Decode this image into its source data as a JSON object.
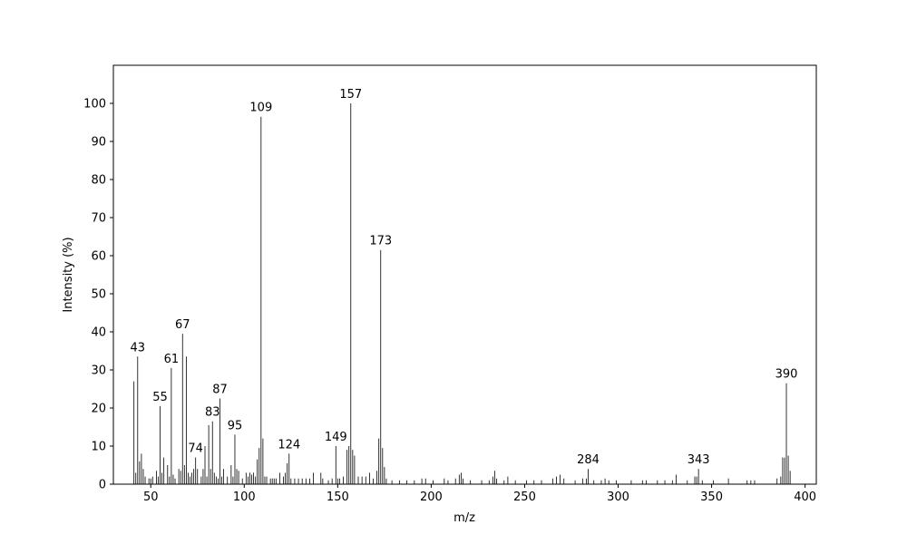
{
  "chart_data": {
    "type": "stem",
    "x_label": "m/z",
    "y_label": "Intensity (%)",
    "color": "#000000",
    "x": [
      41,
      42,
      43,
      44,
      45,
      46,
      47,
      49,
      50,
      51,
      53,
      54,
      55,
      56,
      57,
      59,
      60,
      61,
      62,
      63,
      65,
      66,
      67,
      68,
      69,
      70,
      71,
      72,
      73,
      74,
      75,
      77,
      78,
      79,
      80,
      81,
      82,
      83,
      84,
      85,
      86,
      87,
      88,
      89,
      91,
      93,
      94,
      95,
      96,
      97,
      99,
      101,
      102,
      103,
      104,
      105,
      106,
      107,
      108,
      109,
      110,
      111,
      112,
      114,
      115,
      116,
      117,
      119,
      121,
      122,
      123,
      124,
      125,
      127,
      129,
      131,
      133,
      135,
      137,
      141,
      142,
      145,
      147,
      149,
      150,
      151,
      153,
      155,
      156,
      157,
      158,
      159,
      161,
      163,
      165,
      167,
      169,
      171,
      172,
      173,
      174,
      175,
      176,
      179,
      183,
      187,
      191,
      195,
      197,
      201,
      207,
      209,
      213,
      215,
      216,
      217,
      221,
      227,
      231,
      233,
      234,
      235,
      239,
      241,
      245,
      251,
      255,
      259,
      265,
      267,
      269,
      271,
      277,
      281,
      283,
      284,
      287,
      291,
      293,
      295,
      299,
      307,
      313,
      315,
      321,
      325,
      329,
      331,
      337,
      341,
      342,
      343,
      345,
      351,
      359,
      369,
      371,
      373,
      385,
      387,
      388,
      389,
      390,
      391,
      392
    ],
    "values": [
      27,
      3,
      33.5,
      6,
      8,
      4,
      2,
      1.5,
      1.5,
      2,
      3.5,
      2,
      20.5,
      3,
      7,
      5,
      2,
      30.5,
      2.5,
      1.5,
      4,
      3.5,
      39.5,
      5,
      33.5,
      3,
      2,
      3,
      4,
      7,
      4,
      2,
      4,
      10,
      2,
      15.5,
      4,
      16.5,
      3,
      2,
      1.5,
      22.5,
      2,
      4,
      2,
      5,
      2,
      13,
      4,
      3.5,
      1.5,
      3,
      2,
      3,
      2.5,
      3,
      2,
      6.5,
      9.5,
      96.5,
      12,
      2,
      2,
      1.5,
      1.5,
      1.5,
      1.5,
      3,
      2,
      3,
      5.5,
      8,
      1.5,
      1.5,
      1.5,
      1.5,
      1.5,
      1.5,
      3,
      3,
      1.5,
      1,
      1.5,
      10,
      1.5,
      1.5,
      2,
      9,
      10,
      100,
      9,
      7.5,
      2,
      2,
      2,
      3,
      1.5,
      3.5,
      12,
      61.5,
      9.5,
      4.5,
      1.5,
      1,
      1,
      1,
      1,
      1.5,
      1.5,
      1,
      1.5,
      1,
      1.5,
      2.5,
      3,
      1.5,
      1,
      1,
      1,
      2,
      3.5,
      1.5,
      1,
      2,
      1,
      1,
      1,
      1,
      1.5,
      2,
      2.5,
      1.5,
      1,
      1.5,
      1.5,
      4,
      1,
      1,
      1.5,
      1,
      1,
      1,
      1,
      1,
      1,
      1,
      1,
      2.5,
      1,
      2,
      2,
      4,
      1,
      1,
      1.5,
      1,
      1,
      1,
      1.5,
      2,
      7,
      7,
      26.5,
      7.5,
      3.5
    ],
    "annotations": [
      {
        "text": "43",
        "x": 43
      },
      {
        "text": "55",
        "x": 55
      },
      {
        "text": "61",
        "x": 61
      },
      {
        "text": "67",
        "x": 67
      },
      {
        "text": "74",
        "x": 74
      },
      {
        "text": "83",
        "x": 83
      },
      {
        "text": "87",
        "x": 87
      },
      {
        "text": "95",
        "x": 95
      },
      {
        "text": "109",
        "x": 109
      },
      {
        "text": "124",
        "x": 124
      },
      {
        "text": "149",
        "x": 149
      },
      {
        "text": "157",
        "x": 157
      },
      {
        "text": "173",
        "x": 173
      },
      {
        "text": "284",
        "x": 284
      },
      {
        "text": "343",
        "x": 343
      },
      {
        "text": "390",
        "x": 390
      }
    ],
    "xlim": [
      30,
      406
    ],
    "xticks": [
      50,
      100,
      150,
      200,
      250,
      300,
      350,
      400
    ],
    "ylim": [
      0,
      110
    ],
    "yticks": [
      0,
      10,
      20,
      30,
      40,
      50,
      60,
      70,
      80,
      90,
      100
    ]
  }
}
